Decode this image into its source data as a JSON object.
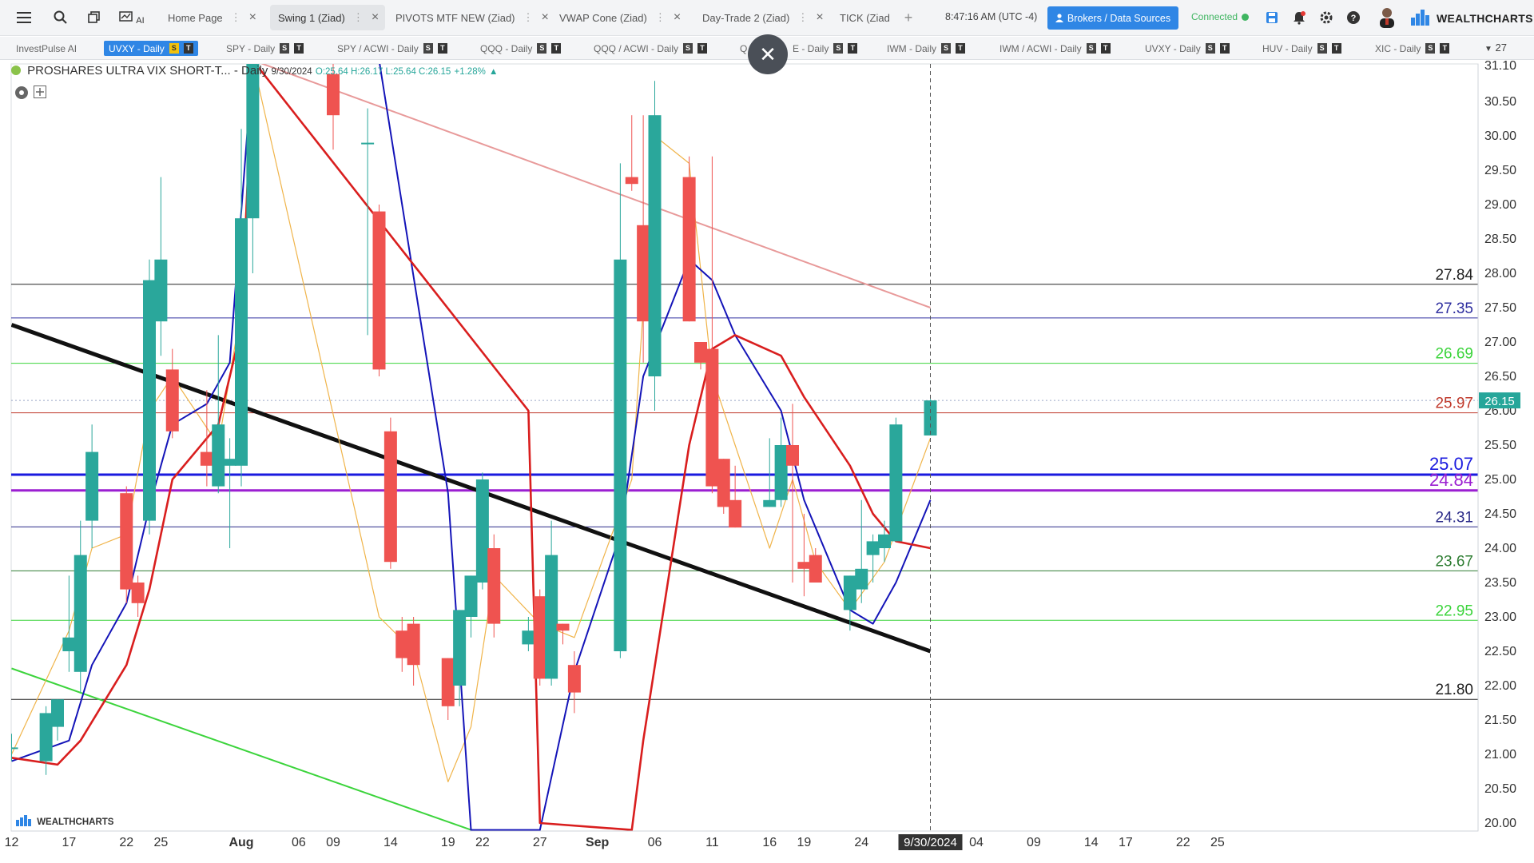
{
  "toolbar": {
    "tabs": [
      {
        "label": "Home Page",
        "active": false
      },
      {
        "label": "Swing 1 (Ziad)",
        "active": true
      },
      {
        "label": "PIVOTS MTF NEW (Ziad)",
        "active": false
      },
      {
        "label": "VWAP Cone (Ziad)",
        "active": false
      },
      {
        "label": "Day-Trade 2 (Ziad)",
        "active": false
      },
      {
        "label": "TICK (Ziad",
        "active": false
      }
    ],
    "clock": "8:47:16 AM",
    "timezone": "(UTC -4)",
    "brokers_label": "Brokers / Data Sources",
    "connected_label": "Connected",
    "brand": "WEALTHCHARTS",
    "ai_label": "AI"
  },
  "symbol_tabs": [
    {
      "label": "InvestPulse AI",
      "active": false,
      "badges": false
    },
    {
      "label": "UVXY - Daily",
      "active": true,
      "badges": true
    },
    {
      "label": "SPY - Daily",
      "active": false,
      "badges": true
    },
    {
      "label": "SPY / ACWI - Daily",
      "active": false,
      "badges": true
    },
    {
      "label": "QQQ - Daily",
      "active": false,
      "badges": true
    },
    {
      "label": "QQQ / ACWI - Daily",
      "active": false,
      "badges": true
    },
    {
      "label": "Q",
      "active": false,
      "badges": false
    },
    {
      "label": "E - Daily",
      "active": false,
      "badges": true
    },
    {
      "label": "IWM - Daily",
      "active": false,
      "badges": true
    },
    {
      "label": "IWM / ACWI - Daily",
      "active": false,
      "badges": true
    },
    {
      "label": "UVXY - Daily",
      "active": false,
      "badges": true
    },
    {
      "label": "HUV - Daily",
      "active": false,
      "badges": true
    },
    {
      "label": "XIC - Daily",
      "active": false,
      "badges": true
    }
  ],
  "badge_labels": {
    "s": "S",
    "t": "T"
  },
  "more_tabs": "27",
  "legend": {
    "title": "PROSHARES ULTRA VIX SHORT-T...",
    "interval": "- Daily",
    "date": "9/30/2024",
    "ohlc": "O:25.64 H:26.17 L:25.64 C:26.15",
    "change": "+1.28%"
  },
  "brand_watermark": "WEALTHCHARTS",
  "chart_data": {
    "type": "candlestick",
    "symbol": "UVXY",
    "interval": "Daily",
    "ylim": [
      19.9,
      31.1
    ],
    "y_ticks": [
      20.0,
      20.5,
      21.0,
      21.5,
      22.0,
      22.5,
      23.0,
      23.5,
      24.0,
      24.5,
      25.0,
      25.5,
      26.0,
      26.5,
      27.0,
      27.5,
      28.0,
      28.5,
      29.0,
      29.5,
      30.0,
      30.5
    ],
    "x_ticks": [
      {
        "label": "12",
        "date": "2024-07-12",
        "bold": false
      },
      {
        "label": "17",
        "date": "2024-07-17",
        "bold": false
      },
      {
        "label": "22",
        "date": "2024-07-22",
        "bold": false
      },
      {
        "label": "25",
        "date": "2024-07-25",
        "bold": false
      },
      {
        "label": "Aug",
        "date": "2024-08-01",
        "bold": true
      },
      {
        "label": "06",
        "date": "2024-08-06",
        "bold": false
      },
      {
        "label": "09",
        "date": "2024-08-09",
        "bold": false
      },
      {
        "label": "14",
        "date": "2024-08-14",
        "bold": false
      },
      {
        "label": "19",
        "date": "2024-08-19",
        "bold": false
      },
      {
        "label": "22",
        "date": "2024-08-22",
        "bold": false
      },
      {
        "label": "27",
        "date": "2024-08-27",
        "bold": false
      },
      {
        "label": "Sep",
        "date": "2024-09-01",
        "bold": true
      },
      {
        "label": "06",
        "date": "2024-09-06",
        "bold": false
      },
      {
        "label": "11",
        "date": "2024-09-11",
        "bold": false
      },
      {
        "label": "16",
        "date": "2024-09-16",
        "bold": false
      },
      {
        "label": "19",
        "date": "2024-09-19",
        "bold": false
      },
      {
        "label": "24",
        "date": "2024-09-24",
        "bold": false
      },
      {
        "label": "9/30/2024",
        "date": "2024-09-30",
        "bold": false,
        "highlight": true
      },
      {
        "label": "04",
        "date": "2024-10-04",
        "bold": false
      },
      {
        "label": "09",
        "date": "2024-10-09",
        "bold": false
      },
      {
        "label": "14",
        "date": "2024-10-14",
        "bold": false
      },
      {
        "label": "17",
        "date": "2024-10-17",
        "bold": false
      },
      {
        "label": "22",
        "date": "2024-10-22",
        "bold": false
      },
      {
        "label": "25",
        "date": "2024-10-25",
        "bold": false
      }
    ],
    "candles": [
      {
        "date": "2024-07-12",
        "o": 21.1,
        "h": 21.3,
        "l": 20.9,
        "c": 21.1
      },
      {
        "date": "2024-07-15",
        "o": 20.9,
        "h": 21.7,
        "l": 20.7,
        "c": 21.6
      },
      {
        "date": "2024-07-16",
        "o": 21.4,
        "h": 21.8,
        "l": 21.2,
        "c": 21.8
      },
      {
        "date": "2024-07-17",
        "o": 22.5,
        "h": 23.6,
        "l": 22.2,
        "c": 22.7
      },
      {
        "date": "2024-07-18",
        "o": 22.2,
        "h": 24.4,
        "l": 21.9,
        "c": 23.9
      },
      {
        "date": "2024-07-19",
        "o": 24.4,
        "h": 25.8,
        "l": 24.0,
        "c": 25.4
      },
      {
        "date": "2024-07-22",
        "o": 24.8,
        "h": 24.9,
        "l": 23.2,
        "c": 23.4
      },
      {
        "date": "2024-07-23",
        "o": 23.5,
        "h": 23.6,
        "l": 23.0,
        "c": 23.2
      },
      {
        "date": "2024-07-24",
        "o": 24.4,
        "h": 28.2,
        "l": 24.2,
        "c": 27.9
      },
      {
        "date": "2024-07-25",
        "o": 27.3,
        "h": 29.4,
        "l": 26.8,
        "c": 28.2
      },
      {
        "date": "2024-07-26",
        "o": 26.6,
        "h": 26.9,
        "l": 25.6,
        "c": 25.7
      },
      {
        "date": "2024-07-29",
        "o": 25.4,
        "h": 26.3,
        "l": 24.9,
        "c": 25.2
      },
      {
        "date": "2024-07-30",
        "o": 24.9,
        "h": 27.1,
        "l": 24.8,
        "c": 25.8
      },
      {
        "date": "2024-07-31",
        "o": 25.2,
        "h": 25.6,
        "l": 24.0,
        "c": 25.3
      },
      {
        "date": "2024-08-01",
        "o": 25.2,
        "h": 30.1,
        "l": 24.9,
        "c": 28.8
      },
      {
        "date": "2024-08-02",
        "o": 28.8,
        "h": 31.1,
        "l": 28.0,
        "c": 31.1
      },
      {
        "date": "2024-08-09",
        "o": 30.9,
        "h": 31.1,
        "l": 29.8,
        "c": 30.3
      },
      {
        "date": "2024-08-12",
        "o": 29.9,
        "h": 30.4,
        "l": 27.1,
        "c": 29.9
      },
      {
        "date": "2024-08-13",
        "o": 28.9,
        "h": 29.0,
        "l": 26.5,
        "c": 26.6
      },
      {
        "date": "2024-08-14",
        "o": 25.7,
        "h": 25.9,
        "l": 23.7,
        "c": 23.8
      },
      {
        "date": "2024-08-15",
        "o": 22.8,
        "h": 23.0,
        "l": 22.2,
        "c": 22.4
      },
      {
        "date": "2024-08-16",
        "o": 22.9,
        "h": 23.0,
        "l": 22.0,
        "c": 22.3
      },
      {
        "date": "2024-08-19",
        "o": 22.4,
        "h": 22.4,
        "l": 21.5,
        "c": 21.7
      },
      {
        "date": "2024-08-20",
        "o": 22.0,
        "h": 23.1,
        "l": 21.7,
        "c": 23.1
      },
      {
        "date": "2024-08-21",
        "o": 23.0,
        "h": 23.6,
        "l": 22.7,
        "c": 23.6
      },
      {
        "date": "2024-08-22",
        "o": 23.5,
        "h": 25.1,
        "l": 23.4,
        "c": 25.0
      },
      {
        "date": "2024-08-23",
        "o": 24.0,
        "h": 24.2,
        "l": 22.7,
        "c": 22.9
      },
      {
        "date": "2024-08-26",
        "o": 22.6,
        "h": 23.0,
        "l": 22.5,
        "c": 22.8
      },
      {
        "date": "2024-08-27",
        "o": 23.3,
        "h": 23.4,
        "l": 22.0,
        "c": 22.1
      },
      {
        "date": "2024-08-28",
        "o": 22.1,
        "h": 24.4,
        "l": 22.0,
        "c": 23.9
      },
      {
        "date": "2024-08-29",
        "o": 22.9,
        "h": 22.9,
        "l": 22.6,
        "c": 22.8
      },
      {
        "date": "2024-08-30",
        "o": 22.3,
        "h": 22.5,
        "l": 21.6,
        "c": 21.9
      },
      {
        "date": "2024-09-03",
        "o": 22.5,
        "h": 29.6,
        "l": 22.4,
        "c": 28.2
      },
      {
        "date": "2024-09-04",
        "o": 29.4,
        "h": 30.3,
        "l": 29.2,
        "c": 29.3
      },
      {
        "date": "2024-09-05",
        "o": 28.7,
        "h": 30.3,
        "l": 26.7,
        "c": 27.3
      },
      {
        "date": "2024-09-06",
        "o": 26.5,
        "h": 30.8,
        "l": 26.0,
        "c": 30.3
      },
      {
        "date": "2024-09-09",
        "o": 29.4,
        "h": 29.7,
        "l": 27.3,
        "c": 27.3
      },
      {
        "date": "2024-09-10",
        "o": 27.0,
        "h": 27.0,
        "l": 26.6,
        "c": 26.7
      },
      {
        "date": "2024-09-11",
        "o": 26.9,
        "h": 29.7,
        "l": 24.8,
        "c": 24.9
      },
      {
        "date": "2024-09-12",
        "o": 25.3,
        "h": 25.3,
        "l": 24.5,
        "c": 24.6
      },
      {
        "date": "2024-09-13",
        "o": 24.7,
        "h": 25.2,
        "l": 24.3,
        "c": 24.3
      },
      {
        "date": "2024-09-16",
        "o": 24.6,
        "h": 25.6,
        "l": 24.6,
        "c": 24.7
      },
      {
        "date": "2024-09-17",
        "o": 24.7,
        "h": 25.9,
        "l": 24.6,
        "c": 25.5
      },
      {
        "date": "2024-09-18",
        "o": 25.5,
        "h": 26.1,
        "l": 23.5,
        "c": 25.2
      },
      {
        "date": "2024-09-19",
        "o": 23.8,
        "h": 24.5,
        "l": 23.3,
        "c": 23.7
      },
      {
        "date": "2024-09-20",
        "o": 23.9,
        "h": 24.0,
        "l": 23.5,
        "c": 23.5
      },
      {
        "date": "2024-09-23",
        "o": 23.1,
        "h": 23.6,
        "l": 22.8,
        "c": 23.6
      },
      {
        "date": "2024-09-24",
        "o": 23.4,
        "h": 24.7,
        "l": 23.2,
        "c": 23.7
      },
      {
        "date": "2024-09-25",
        "o": 23.9,
        "h": 24.2,
        "l": 23.5,
        "c": 24.1
      },
      {
        "date": "2024-09-26",
        "o": 24.0,
        "h": 24.4,
        "l": 23.8,
        "c": 24.2
      },
      {
        "date": "2024-09-27",
        "o": 24.1,
        "h": 25.9,
        "l": 24.1,
        "c": 25.8
      },
      {
        "date": "2024-09-30",
        "o": 25.64,
        "h": 26.17,
        "l": 25.64,
        "c": 26.15
      }
    ],
    "horizontal_levels": [
      {
        "value": 27.84,
        "label": "27.84",
        "color": "#222222",
        "width": 1
      },
      {
        "value": 27.35,
        "label": "27.35",
        "color": "#3030a0",
        "width": 1
      },
      {
        "value": 26.69,
        "label": "26.69",
        "color": "#3cd43c",
        "width": 1
      },
      {
        "value": 25.97,
        "label": "25.97",
        "color": "#c0392b",
        "width": 1
      },
      {
        "value": 25.07,
        "label": "25.07",
        "color": "#1a1adf",
        "width": 3
      },
      {
        "value": 24.84,
        "label": "24.84",
        "color": "#9b1fd1",
        "width": 3
      },
      {
        "value": 24.31,
        "label": "24.31",
        "color": "#2a2a88",
        "width": 1
      },
      {
        "value": 23.67,
        "label": "23.67",
        "color": "#2e7d32",
        "width": 1
      },
      {
        "value": 22.95,
        "label": "22.95",
        "color": "#3cd43c",
        "width": 1
      },
      {
        "value": 21.8,
        "label": "21.80",
        "color": "#222222",
        "width": 1
      }
    ],
    "last_price": {
      "value": 26.15,
      "label": "26.15",
      "color": "#26a69a"
    },
    "axis_top_label": "31.10",
    "trendlines": [
      {
        "from": [
          "2024-07-12",
          27.25
        ],
        "to": [
          "2024-09-30",
          22.5
        ],
        "color": "#111111",
        "width": 5
      },
      {
        "from": [
          "2024-07-12",
          22.25
        ],
        "to": [
          "2024-08-21",
          19.9
        ],
        "color": "#3cd43c",
        "width": 2
      },
      {
        "from": [
          "2024-08-02",
          31.1
        ],
        "to": [
          "2024-09-30",
          27.5
        ],
        "color": "#e89a9a",
        "width": 2
      }
    ],
    "ma_red": [
      [
        "2024-07-12",
        20.95
      ],
      [
        "2024-07-16",
        20.85
      ],
      [
        "2024-07-18",
        21.2
      ],
      [
        "2024-07-22",
        22.3
      ],
      [
        "2024-07-24",
        23.4
      ],
      [
        "2024-07-26",
        25.0
      ],
      [
        "2024-07-30",
        25.8
      ],
      [
        "2024-08-01",
        27.2
      ],
      [
        "2024-08-02",
        31.1
      ],
      [
        "2024-08-26",
        26.0
      ],
      [
        "2024-08-27",
        20.0
      ],
      [
        "2024-09-04",
        19.9
      ],
      [
        "2024-09-05",
        21.2
      ],
      [
        "2024-09-09",
        25.5
      ],
      [
        "2024-09-11",
        26.9
      ],
      [
        "2024-09-13",
        27.1
      ],
      [
        "2024-09-17",
        26.8
      ],
      [
        "2024-09-19",
        26.2
      ],
      [
        "2024-09-23",
        25.2
      ],
      [
        "2024-09-25",
        24.5
      ],
      [
        "2024-09-27",
        24.1
      ],
      [
        "2024-09-30",
        24.0
      ]
    ],
    "ma_blue": [
      [
        "2024-07-12",
        20.9
      ],
      [
        "2024-07-17",
        21.2
      ],
      [
        "2024-07-19",
        22.3
      ],
      [
        "2024-07-22",
        23.2
      ],
      [
        "2024-07-24",
        24.6
      ],
      [
        "2024-07-26",
        25.8
      ],
      [
        "2024-07-29",
        26.1
      ],
      [
        "2024-07-31",
        26.7
      ],
      [
        "2024-08-02",
        31.1
      ],
      [
        "2024-08-13",
        31.1
      ],
      [
        "2024-08-19",
        24.8
      ],
      [
        "2024-08-21",
        19.9
      ],
      [
        "2024-08-27",
        19.9
      ],
      [
        "2024-08-30",
        22.2
      ],
      [
        "2024-09-03",
        24.2
      ],
      [
        "2024-09-05",
        26.5
      ],
      [
        "2024-09-09",
        28.2
      ],
      [
        "2024-09-11",
        27.9
      ],
      [
        "2024-09-13",
        27.1
      ],
      [
        "2024-09-17",
        26.0
      ],
      [
        "2024-09-19",
        24.7
      ],
      [
        "2024-09-23",
        23.1
      ],
      [
        "2024-09-25",
        22.9
      ],
      [
        "2024-09-27",
        23.5
      ],
      [
        "2024-09-30",
        24.7
      ]
    ],
    "ma_orange": [
      [
        "2024-07-12",
        21.0
      ],
      [
        "2024-07-17",
        22.8
      ],
      [
        "2024-07-19",
        24.0
      ],
      [
        "2024-07-22",
        24.2
      ],
      [
        "2024-07-24",
        26.0
      ],
      [
        "2024-07-26",
        26.5
      ],
      [
        "2024-07-30",
        25.5
      ],
      [
        "2024-08-01",
        27.5
      ],
      [
        "2024-08-02",
        31.1
      ],
      [
        "2024-08-13",
        23.0
      ],
      [
        "2024-08-16",
        22.5
      ],
      [
        "2024-08-19",
        20.6
      ],
      [
        "2024-08-21",
        21.4
      ],
      [
        "2024-08-23",
        23.6
      ],
      [
        "2024-08-27",
        22.9
      ],
      [
        "2024-08-30",
        22.7
      ],
      [
        "2024-09-04",
        25.0
      ],
      [
        "2024-09-06",
        30.0
      ],
      [
        "2024-09-09",
        29.6
      ],
      [
        "2024-09-11",
        26.5
      ],
      [
        "2024-09-13",
        25.5
      ],
      [
        "2024-09-16",
        24.0
      ],
      [
        "2024-09-18",
        25.0
      ],
      [
        "2024-09-20",
        23.8
      ],
      [
        "2024-09-23",
        23.1
      ],
      [
        "2024-09-26",
        23.8
      ],
      [
        "2024-09-30",
        25.6
      ]
    ],
    "crosshair_date": "2024-09-30",
    "grid": false
  }
}
